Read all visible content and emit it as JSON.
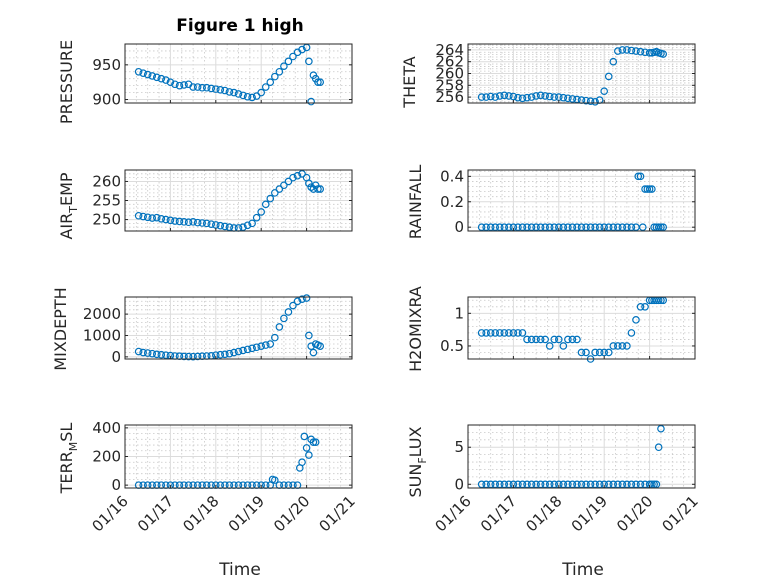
{
  "chart_data": [
    {
      "type": "scatter",
      "title": "Figure 1 high",
      "ylabel": "PRESSURE",
      "xlabel": "",
      "xlim": [
        0,
        5
      ],
      "ylim": [
        895,
        980
      ],
      "yticks": [
        900,
        950
      ],
      "xticklabels": [
        "01/16",
        "01/17",
        "01/18",
        "01/19",
        "01/20",
        "01/21"
      ],
      "grid": true,
      "color": "#0072bd",
      "x": [
        0.3,
        0.4,
        0.5,
        0.6,
        0.7,
        0.8,
        0.9,
        1.0,
        1.1,
        1.2,
        1.3,
        1.4,
        1.5,
        1.6,
        1.7,
        1.8,
        1.9,
        2.0,
        2.1,
        2.2,
        2.3,
        2.4,
        2.5,
        2.6,
        2.7,
        2.8,
        2.9,
        3.0,
        3.1,
        3.2,
        3.3,
        3.4,
        3.5,
        3.6,
        3.7,
        3.8,
        3.9,
        4.0,
        4.05,
        4.1,
        4.15,
        4.2,
        4.25,
        4.3
      ],
      "y": [
        940,
        938,
        936,
        934,
        932,
        930,
        928,
        925,
        922,
        920,
        921,
        922,
        918,
        918,
        917,
        917,
        916,
        915,
        914,
        913,
        911,
        910,
        908,
        906,
        904,
        903,
        905,
        910,
        918,
        925,
        933,
        940,
        948,
        955,
        962,
        968,
        972,
        975,
        955,
        897,
        935,
        930,
        925,
        925
      ]
    },
    {
      "type": "scatter",
      "title": "",
      "ylabel": "THETA",
      "xlabel": "",
      "xlim": [
        0,
        5
      ],
      "ylim": [
        255,
        265
      ],
      "yticks": [
        256,
        258,
        260,
        262,
        264
      ],
      "xticklabels": [
        "01/16",
        "01/17",
        "01/18",
        "01/19",
        "01/20",
        "01/21"
      ],
      "grid": true,
      "color": "#0072bd",
      "x": [
        0.3,
        0.4,
        0.5,
        0.6,
        0.7,
        0.8,
        0.9,
        1.0,
        1.1,
        1.2,
        1.3,
        1.4,
        1.5,
        1.6,
        1.7,
        1.8,
        1.9,
        2.0,
        2.1,
        2.2,
        2.3,
        2.4,
        2.5,
        2.6,
        2.7,
        2.8,
        2.9,
        3.0,
        3.1,
        3.2,
        3.3,
        3.4,
        3.5,
        3.6,
        3.7,
        3.8,
        3.9,
        4.0,
        4.05,
        4.1,
        4.15,
        4.2,
        4.25,
        4.3
      ],
      "y": [
        256.0,
        256.0,
        256.1,
        256.0,
        256.2,
        256.3,
        256.2,
        256.1,
        255.9,
        255.8,
        255.9,
        256.0,
        256.2,
        256.3,
        256.2,
        256.1,
        256.0,
        256.0,
        255.9,
        255.8,
        255.7,
        255.6,
        255.5,
        255.4,
        255.3,
        255.2,
        255.5,
        257.0,
        259.5,
        262.0,
        263.8,
        264.0,
        264.0,
        263.9,
        263.8,
        263.7,
        263.6,
        263.5,
        263.5,
        263.6,
        263.7,
        263.5,
        263.4,
        263.3
      ]
    },
    {
      "type": "scatter",
      "title": "",
      "ylabel": "AIR_TEMP",
      "xlabel": "",
      "xlim": [
        0,
        5
      ],
      "ylim": [
        247,
        263
      ],
      "yticks": [
        250,
        255,
        260
      ],
      "xticklabels": [
        "01/16",
        "01/17",
        "01/18",
        "01/19",
        "01/20",
        "01/21"
      ],
      "grid": true,
      "color": "#0072bd",
      "x": [
        0.3,
        0.4,
        0.5,
        0.6,
        0.7,
        0.8,
        0.9,
        1.0,
        1.1,
        1.2,
        1.3,
        1.4,
        1.5,
        1.6,
        1.7,
        1.8,
        1.9,
        2.0,
        2.1,
        2.2,
        2.3,
        2.4,
        2.5,
        2.6,
        2.7,
        2.8,
        2.9,
        3.0,
        3.1,
        3.2,
        3.3,
        3.4,
        3.5,
        3.6,
        3.7,
        3.8,
        3.9,
        4.0,
        4.05,
        4.1,
        4.15,
        4.2,
        4.25,
        4.3
      ],
      "y": [
        251,
        250.8,
        250.6,
        250.4,
        250.5,
        250.2,
        250,
        249.8,
        249.6,
        249.5,
        249.4,
        249.3,
        249.4,
        249.2,
        249.1,
        249,
        248.8,
        248.6,
        248.4,
        248.2,
        248,
        247.8,
        247.8,
        248,
        248.5,
        249,
        250.5,
        252,
        254,
        255.5,
        257,
        258,
        259,
        260,
        261,
        261.5,
        262,
        261,
        259.5,
        258.5,
        258,
        259,
        258,
        258
      ]
    },
    {
      "type": "scatter",
      "title": "",
      "ylabel": "RAINFALL",
      "xlabel": "",
      "xlim": [
        0,
        5
      ],
      "ylim": [
        -0.03,
        0.45
      ],
      "yticks": [
        0,
        0.2,
        0.4
      ],
      "xticklabels": [
        "01/16",
        "01/17",
        "01/18",
        "01/19",
        "01/20",
        "01/21"
      ],
      "grid": true,
      "color": "#0072bd",
      "x": [
        0.3,
        0.4,
        0.5,
        0.6,
        0.7,
        0.8,
        0.9,
        1.0,
        1.1,
        1.2,
        1.3,
        1.4,
        1.5,
        1.6,
        1.7,
        1.8,
        1.9,
        2.0,
        2.1,
        2.2,
        2.3,
        2.4,
        2.5,
        2.6,
        2.7,
        2.8,
        2.9,
        3.0,
        3.1,
        3.2,
        3.3,
        3.4,
        3.5,
        3.6,
        3.7,
        3.75,
        3.8,
        3.85,
        3.9,
        3.95,
        4.0,
        4.05,
        4.1,
        4.15,
        4.2,
        4.25,
        4.3
      ],
      "y": [
        0,
        0,
        0,
        0,
        0,
        0,
        0,
        0,
        0,
        0,
        0,
        0,
        0,
        0,
        0,
        0,
        0,
        0,
        0,
        0,
        0,
        0,
        0,
        0,
        0,
        0,
        0,
        0,
        0,
        0,
        0,
        0,
        0,
        0,
        0,
        0.4,
        0.4,
        0,
        0.3,
        0.3,
        0.3,
        0.3,
        0,
        0,
        0,
        0,
        0
      ]
    },
    {
      "type": "scatter",
      "title": "",
      "ylabel": "MIXDEPTH",
      "xlabel": "",
      "xlim": [
        0,
        5
      ],
      "ylim": [
        -100,
        2800
      ],
      "yticks": [
        0,
        1000,
        2000
      ],
      "xticklabels": [
        "01/16",
        "01/17",
        "01/18",
        "01/19",
        "01/20",
        "01/21"
      ],
      "grid": true,
      "color": "#0072bd",
      "x": [
        0.3,
        0.4,
        0.5,
        0.6,
        0.7,
        0.8,
        0.9,
        1.0,
        1.1,
        1.2,
        1.3,
        1.4,
        1.5,
        1.6,
        1.7,
        1.8,
        1.9,
        2.0,
        2.1,
        2.2,
        2.3,
        2.4,
        2.5,
        2.6,
        2.7,
        2.8,
        2.9,
        3.0,
        3.1,
        3.2,
        3.3,
        3.4,
        3.5,
        3.6,
        3.7,
        3.8,
        3.9,
        4.0,
        4.05,
        4.1,
        4.15,
        4.2,
        4.25,
        4.3
      ],
      "y": [
        250,
        200,
        180,
        150,
        120,
        100,
        80,
        60,
        40,
        30,
        20,
        15,
        10,
        20,
        30,
        40,
        50,
        80,
        100,
        120,
        150,
        200,
        250,
        300,
        350,
        400,
        450,
        500,
        550,
        600,
        900,
        1400,
        1800,
        2100,
        2400,
        2600,
        2700,
        2750,
        1000,
        500,
        200,
        600,
        550,
        500
      ]
    },
    {
      "type": "scatter",
      "title": "",
      "ylabel": "H2OMIXRA",
      "xlabel": "",
      "xlim": [
        0,
        5
      ],
      "ylim": [
        0.3,
        1.25
      ],
      "yticks": [
        0.5,
        1
      ],
      "xticklabels": [
        "01/16",
        "01/17",
        "01/18",
        "01/19",
        "01/20",
        "01/21"
      ],
      "grid": true,
      "color": "#0072bd",
      "x": [
        0.3,
        0.4,
        0.5,
        0.6,
        0.7,
        0.8,
        0.9,
        1.0,
        1.1,
        1.2,
        1.3,
        1.4,
        1.5,
        1.6,
        1.7,
        1.8,
        1.9,
        2.0,
        2.1,
        2.2,
        2.3,
        2.4,
        2.5,
        2.6,
        2.7,
        2.8,
        2.9,
        3.0,
        3.1,
        3.2,
        3.3,
        3.4,
        3.5,
        3.6,
        3.7,
        3.8,
        3.9,
        4.0,
        4.05,
        4.1,
        4.15,
        4.2,
        4.25,
        4.3
      ],
      "y": [
        0.7,
        0.7,
        0.7,
        0.7,
        0.7,
        0.7,
        0.7,
        0.7,
        0.7,
        0.7,
        0.6,
        0.6,
        0.6,
        0.6,
        0.6,
        0.5,
        0.6,
        0.6,
        0.5,
        0.6,
        0.6,
        0.6,
        0.4,
        0.4,
        0.3,
        0.4,
        0.4,
        0.4,
        0.4,
        0.5,
        0.5,
        0.5,
        0.5,
        0.7,
        0.9,
        1.1,
        1.1,
        1.2,
        1.2,
        1.2,
        1.2,
        1.2,
        1.2,
        1.2
      ]
    },
    {
      "type": "scatter",
      "title": "",
      "ylabel": "TERR_MSL",
      "xlabel": "Time",
      "xlim": [
        0,
        5
      ],
      "ylim": [
        -20,
        420
      ],
      "yticks": [
        0,
        200,
        400
      ],
      "xticklabels": [
        "01/16",
        "01/17",
        "01/18",
        "01/19",
        "01/20",
        "01/21"
      ],
      "grid": true,
      "color": "#0072bd",
      "x": [
        0.3,
        0.4,
        0.5,
        0.6,
        0.7,
        0.8,
        0.9,
        1.0,
        1.1,
        1.2,
        1.3,
        1.4,
        1.5,
        1.6,
        1.7,
        1.8,
        1.9,
        2.0,
        2.1,
        2.2,
        2.3,
        2.4,
        2.5,
        2.6,
        2.7,
        2.8,
        2.9,
        3.0,
        3.1,
        3.2,
        3.25,
        3.3,
        3.4,
        3.5,
        3.6,
        3.7,
        3.8,
        3.85,
        3.9,
        3.95,
        4.0,
        4.05,
        4.1,
        4.15,
        4.2
      ],
      "y": [
        0,
        0,
        0,
        0,
        0,
        0,
        0,
        0,
        0,
        0,
        0,
        0,
        0,
        0,
        0,
        0,
        0,
        0,
        0,
        0,
        0,
        0,
        0,
        0,
        0,
        0,
        0,
        0,
        0,
        0,
        40,
        35,
        0,
        0,
        0,
        0,
        0,
        120,
        160,
        340,
        260,
        210,
        320,
        300,
        300
      ]
    },
    {
      "type": "scatter",
      "title": "",
      "ylabel": "SUN_FLUX",
      "xlabel": "Time",
      "xlim": [
        0,
        5
      ],
      "ylim": [
        -0.5,
        8
      ],
      "yticks": [
        0,
        5
      ],
      "xticklabels": [
        "01/16",
        "01/17",
        "01/18",
        "01/19",
        "01/20",
        "01/21"
      ],
      "grid": true,
      "color": "#0072bd",
      "x": [
        0.3,
        0.4,
        0.5,
        0.6,
        0.7,
        0.8,
        0.9,
        1.0,
        1.1,
        1.2,
        1.3,
        1.4,
        1.5,
        1.6,
        1.7,
        1.8,
        1.9,
        2.0,
        2.1,
        2.2,
        2.3,
        2.4,
        2.5,
        2.6,
        2.7,
        2.8,
        2.9,
        3.0,
        3.1,
        3.2,
        3.3,
        3.4,
        3.5,
        3.6,
        3.7,
        3.8,
        3.9,
        4.0,
        4.05,
        4.1,
        4.15,
        4.2,
        4.25
      ],
      "y": [
        0,
        0,
        0,
        0,
        0,
        0,
        0,
        0,
        0,
        0,
        0,
        0,
        0,
        0,
        0,
        0,
        0,
        0,
        0,
        0,
        0,
        0,
        0,
        0,
        0,
        0,
        0,
        0,
        0,
        0,
        0,
        0,
        0,
        0,
        0,
        0,
        0,
        0,
        0,
        0,
        0,
        5,
        7.5
      ]
    }
  ]
}
